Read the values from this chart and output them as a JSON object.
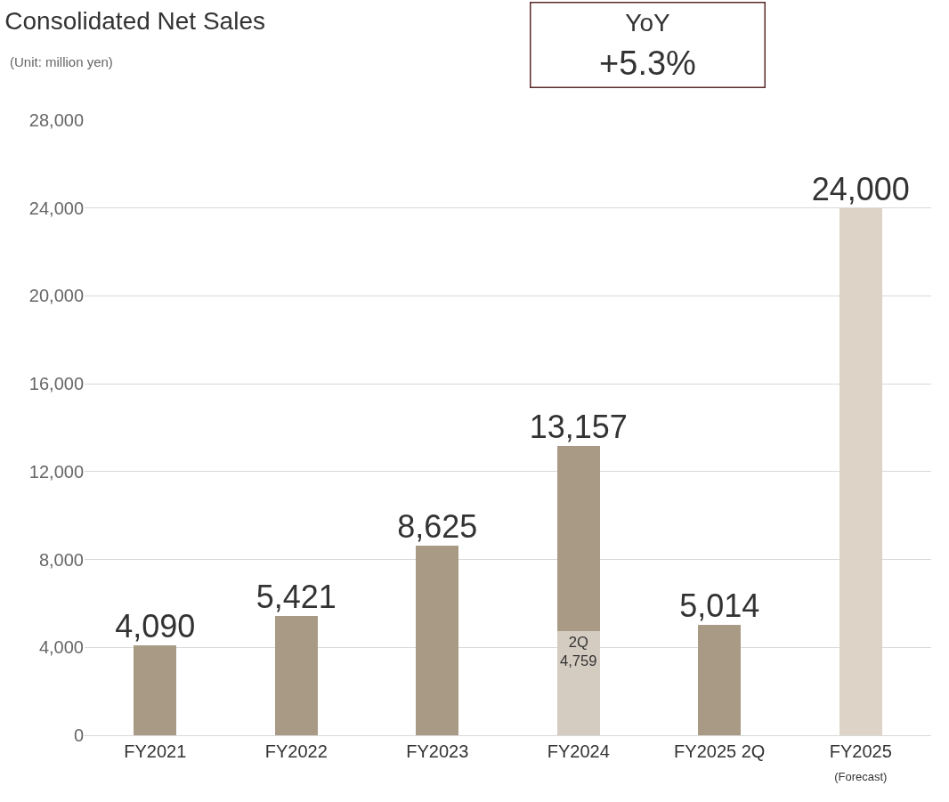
{
  "chart_data": {
    "type": "bar",
    "title": "Consolidated Net Sales",
    "stacked": true,
    "categories": [
      "FY2021",
      "FY2022",
      "FY2023",
      "FY2024",
      "FY2025 2Q",
      "FY2025\n(Forecast)"
    ],
    "series": [
      {
        "color": "#d5ccc1",
        "values": [
          null,
          null,
          null,
          4759,
          null,
          null
        ],
        "value_labels": [
          null,
          null,
          null,
          "2Q\n4,759",
          null,
          null
        ]
      },
      {
        "colors": [
          "#a99a86",
          "#a99a86",
          "#a99a86",
          "#a99a86",
          "#a99a86",
          "#ddd3c7"
        ],
        "values": [
          4090,
          5421,
          8625,
          8398,
          5014,
          24000
        ]
      }
    ],
    "totals": [
      "4,090",
      "5,421",
      "8,625",
      "13,157",
      "5,014",
      "24,000"
    ],
    "ylim": [
      0,
      28000
    ],
    "yticks": [
      {
        "value": 0,
        "label": "0"
      },
      {
        "value": 4000,
        "label": "4,000"
      },
      {
        "value": 8000,
        "label": "8,000"
      },
      {
        "value": 12000,
        "label": "12,000"
      },
      {
        "value": 16000,
        "label": "16,000"
      },
      {
        "value": 20000,
        "label": "20,000"
      },
      {
        "value": 24000,
        "label": "24,000"
      },
      {
        "value": 28000,
        "label": "28,000"
      }
    ],
    "grid": "y",
    "annotations": [
      "(Unit: million yen)",
      "YoY\n+5.3%"
    ]
  }
}
